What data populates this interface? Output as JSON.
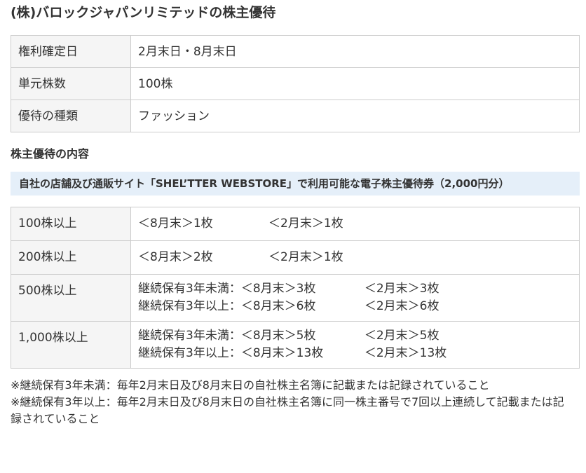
{
  "title": "(株)バロックジャパンリミテッドの株主優待",
  "summary": [
    {
      "label": "権利確定日",
      "value": "2月末日・8月末日"
    },
    {
      "label": "単元株数",
      "value": "100株"
    },
    {
      "label": "優待の種類",
      "value": "ファッション"
    }
  ],
  "section_title": "株主優待の内容",
  "highlight": "自社の店舗及び通販サイト「SHEL’TTER WEBSTORE」で利用可能な電子株主優待券（2,000円分）",
  "tiers": [
    {
      "label": "100株以上",
      "lines": [
        {
          "prefix": "",
          "aug": "＜8月末＞1枚",
          "feb": "＜2月末＞1枚"
        }
      ]
    },
    {
      "label": "200株以上",
      "lines": [
        {
          "prefix": "",
          "aug": "＜8月末＞2枚",
          "feb": "＜2月末＞1枚"
        }
      ]
    },
    {
      "label": "500株以上",
      "lines": [
        {
          "prefix": "継続保有3年未満：",
          "aug": "＜8月末＞3枚",
          "feb": "＜2月末＞3枚"
        },
        {
          "prefix": "継続保有3年以上：",
          "aug": "＜8月末＞6枚",
          "feb": "＜2月末＞6枚"
        }
      ]
    },
    {
      "label": "1,000株以上",
      "lines": [
        {
          "prefix": "継続保有3年未満：",
          "aug": "＜8月末＞5枚",
          "feb": "＜2月末＞5枚"
        },
        {
          "prefix": "継続保有3年以上：",
          "aug": "＜8月末＞13枚",
          "feb": "＜2月末＞13枚"
        }
      ]
    }
  ],
  "notes": [
    "※継続保有3年未満：毎年2月末日及び8月末日の自社株主名簿に記載または記録されていること",
    "※継続保有3年以上：毎年2月末日及び8月末日の自社株主名簿に同一株主番号で7回以上連続して記載または記録されていること"
  ]
}
